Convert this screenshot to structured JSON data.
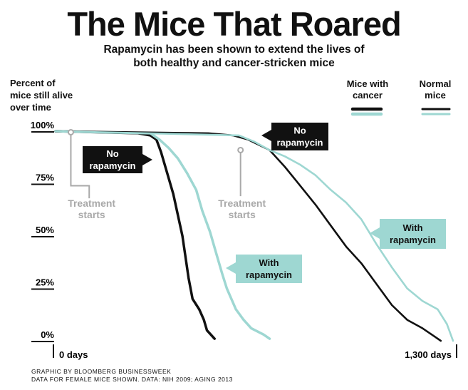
{
  "chart_data": {
    "type": "line",
    "title": "The Mice That Roared",
    "subtitle": "Rapamycin has been shown to extend the lives of\nboth healthy and cancer-stricken mice",
    "ylabel": "Percent of\nmice still alive\nover time",
    "y_ticks": [
      "100%",
      "75%",
      "50%",
      "25%",
      "0%"
    ],
    "y_tick_values": [
      100,
      75,
      50,
      25,
      0
    ],
    "x_start_label": "0 days",
    "x_end_label": "1,300 days",
    "xlim": [
      0,
      1300
    ],
    "ylim": [
      0,
      100
    ],
    "legend": {
      "groups": [
        {
          "label": "Mice with\ncancer",
          "colors": [
            "#111111",
            "#9ed7d2"
          ]
        },
        {
          "label": "Normal\nmice",
          "colors": [
            "#111111",
            "#9ed7d2"
          ]
        }
      ]
    },
    "colors": {
      "no_rapamycin": "#111111",
      "with_rapamycin": "#9ed7d2",
      "treatment": "#a9a9a9"
    },
    "series": [
      {
        "group": "cancer",
        "treatment": "none",
        "points": [
          [
            0,
            100
          ],
          [
            270,
            99
          ],
          [
            310,
            98
          ],
          [
            330,
            96
          ],
          [
            345,
            90
          ],
          [
            365,
            80
          ],
          [
            385,
            70
          ],
          [
            400,
            60
          ],
          [
            415,
            50
          ],
          [
            425,
            40
          ],
          [
            435,
            30
          ],
          [
            448,
            20
          ],
          [
            470,
            15
          ],
          [
            485,
            10
          ],
          [
            495,
            5
          ],
          [
            520,
            1
          ]
        ]
      },
      {
        "group": "cancer",
        "treatment": "rapamycin",
        "points": [
          [
            0,
            100
          ],
          [
            310,
            99
          ],
          [
            340,
            96
          ],
          [
            370,
            92
          ],
          [
            400,
            87
          ],
          [
            430,
            80
          ],
          [
            460,
            72
          ],
          [
            480,
            62
          ],
          [
            505,
            52
          ],
          [
            525,
            42
          ],
          [
            545,
            32
          ],
          [
            560,
            25
          ],
          [
            575,
            20
          ],
          [
            590,
            15
          ],
          [
            615,
            10
          ],
          [
            640,
            6
          ],
          [
            680,
            3
          ],
          [
            700,
            1
          ]
        ]
      },
      {
        "group": "normal",
        "treatment": "none",
        "points": [
          [
            0,
            100
          ],
          [
            500,
            99
          ],
          [
            580,
            98
          ],
          [
            630,
            96
          ],
          [
            700,
            91
          ],
          [
            750,
            83
          ],
          [
            800,
            74
          ],
          [
            850,
            65
          ],
          [
            900,
            55
          ],
          [
            950,
            45
          ],
          [
            1000,
            37
          ],
          [
            1050,
            27
          ],
          [
            1100,
            17
          ],
          [
            1150,
            10
          ],
          [
            1200,
            6
          ],
          [
            1240,
            2
          ],
          [
            1260,
            0
          ]
        ]
      },
      {
        "group": "normal",
        "treatment": "rapamycin",
        "points": [
          [
            0,
            100
          ],
          [
            600,
            98
          ],
          [
            650,
            95
          ],
          [
            700,
            91
          ],
          [
            750,
            88
          ],
          [
            800,
            84
          ],
          [
            850,
            79
          ],
          [
            900,
            72
          ],
          [
            950,
            66
          ],
          [
            1000,
            58
          ],
          [
            1050,
            46
          ],
          [
            1100,
            35
          ],
          [
            1150,
            25
          ],
          [
            1200,
            19
          ],
          [
            1250,
            15
          ],
          [
            1280,
            8
          ],
          [
            1300,
            0
          ]
        ]
      }
    ],
    "annotations": {
      "treatment_starts": "Treatment\nstarts",
      "treatment_start_days": [
        50,
        605
      ],
      "no_rapamycin": "No\nrapamycin",
      "with_rapamycin": "With\nrapamycin"
    },
    "grid": false
  },
  "source": {
    "line1": "GRAPHIC BY BLOOMBERG BUSINESSWEEK",
    "line2": "DATA FOR FEMALE MICE SHOWN. DATA: NIH 2009; AGING 2013"
  }
}
